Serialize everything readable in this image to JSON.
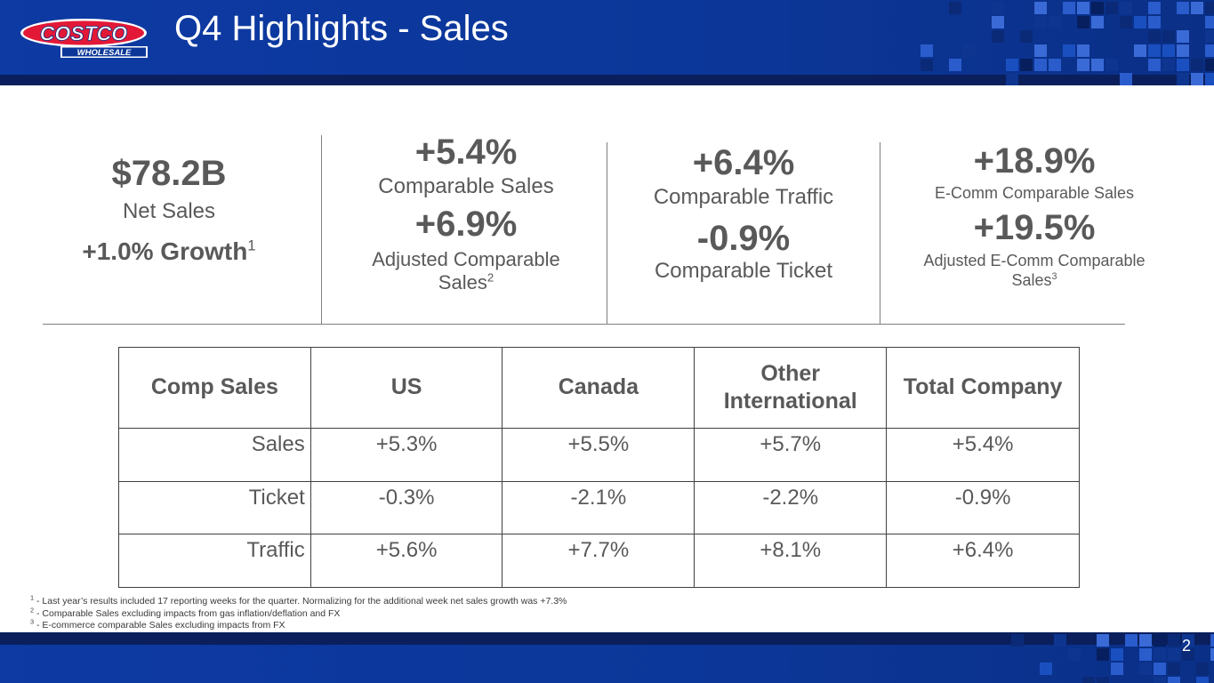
{
  "header": {
    "title": "Q4 Highlights - Sales",
    "logo_top": "COSTCO",
    "logo_bottom": "WHOLESALE"
  },
  "kpis": {
    "net_sales": {
      "value": "$78.2B",
      "label": "Net Sales",
      "growth": "+1.0% Growth",
      "note": "1"
    },
    "comp_sales": {
      "value": "+5.4%",
      "label": "Comparable Sales",
      "adj_value": "+6.9%",
      "adj_label_line1": "Adjusted Comparable",
      "adj_label_line2": "Sales",
      "note": "2"
    },
    "comp_traffic": {
      "value": "+6.4%",
      "label": "Comparable Traffic",
      "ticket_value": "-0.9%",
      "ticket_label": "Comparable Ticket"
    },
    "ecomm": {
      "value": "+18.9%",
      "label": "E-Comm Comparable Sales",
      "adj_value": "+19.5%",
      "adj_label_line1": "Adjusted E-Comm Comparable",
      "adj_label_line2": "Sales",
      "note": "3"
    }
  },
  "table": {
    "headers": [
      "Comp Sales",
      "US",
      "Canada",
      "Other",
      "International",
      "Total Company"
    ],
    "rows": [
      {
        "label": "Sales",
        "values": [
          "+5.3%",
          "+5.5%",
          "+5.7%",
          "+5.4%"
        ]
      },
      {
        "label": "Ticket",
        "values": [
          "-0.3%",
          "-2.1%",
          "-2.2%",
          "-0.9%"
        ]
      },
      {
        "label": "Traffic",
        "values": [
          "+5.6%",
          "+7.7%",
          "+8.1%",
          "+6.4%"
        ]
      }
    ]
  },
  "footnotes": [
    {
      "num": "1",
      "text": " - Last year’s results included 17 reporting weeks for the quarter. Normalizing for the additional week net sales growth was +7.3%"
    },
    {
      "num": "2",
      "text": " - Comparable Sales excluding impacts from gas inflation/deflation and FX"
    },
    {
      "num": "3",
      "text": " - E-commerce comparable Sales excluding impacts from FX"
    }
  ],
  "page_number": "2",
  "colors": {
    "brand_blue": "#0c3799",
    "brand_red": "#e31837",
    "dark_navy": "#0a1f5c",
    "text_gray": "#595959"
  }
}
